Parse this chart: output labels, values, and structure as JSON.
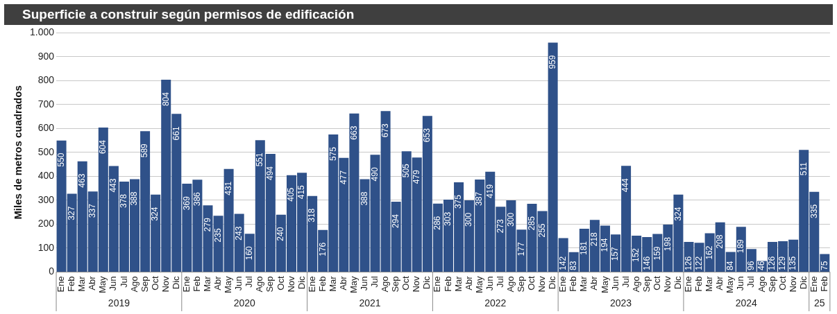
{
  "chart_data": {
    "type": "bar",
    "title": "Superficie a construir según permisos de edificación",
    "ylabel": "Miles de metros cuadrados",
    "categories": [
      "Ene",
      "Feb",
      "Mar",
      "Abr",
      "May",
      "Jun",
      "Jul",
      "Ago",
      "Sep",
      "Oct",
      "Nov",
      "Dic",
      "Ene",
      "Feb",
      "Mar",
      "Abr",
      "May",
      "Jun",
      "Jul",
      "Ago",
      "Sep",
      "Oct",
      "Nov",
      "Dic",
      "Ene",
      "Feb",
      "Mar",
      "Abr",
      "May",
      "Jun",
      "Jul",
      "Ago",
      "Sep",
      "Oct",
      "Nov",
      "Dic",
      "Ene",
      "Feb",
      "Mar",
      "Abr",
      "May",
      "Jun",
      "Jul",
      "Ago",
      "Sep",
      "Oct",
      "Nov",
      "Dic",
      "Ene",
      "Feb",
      "Mar",
      "Abr",
      "May",
      "Jun",
      "Jul",
      "Ago",
      "Sep",
      "Oct",
      "Nov",
      "Dic",
      "Ene",
      "Feb",
      "Mar",
      "Abr",
      "May",
      "Jun",
      "Jul",
      "Ago",
      "Sep",
      "Oct",
      "Nov",
      "Dic",
      "Ene",
      "Feb"
    ],
    "values": [
      550,
      327,
      463,
      337,
      604,
      443,
      378,
      388,
      589,
      324,
      804,
      661,
      369,
      386,
      279,
      235,
      431,
      243,
      160,
      551,
      494,
      240,
      405,
      415,
      318,
      176,
      575,
      477,
      663,
      388,
      490,
      673,
      294,
      505,
      479,
      653,
      286,
      303,
      375,
      300,
      387,
      419,
      273,
      300,
      177,
      285,
      255,
      959,
      142,
      83,
      181,
      218,
      194,
      157,
      444,
      152,
      146,
      159,
      198,
      324,
      126,
      122,
      162,
      208,
      84,
      189,
      96,
      46,
      126,
      129,
      135,
      511,
      335,
      75
    ],
    "color": "#2f5189",
    "ylim": [
      0,
      1000
    ],
    "yticks": [
      0,
      100,
      200,
      300,
      400,
      500,
      600,
      700,
      800,
      900,
      {
        "value": 1000,
        "label": "1.000"
      }
    ],
    "grid": "y",
    "legend": false,
    "data_labels": true,
    "annotations": [
      "2019",
      "2020",
      "2021",
      "2022",
      "2023",
      "2024",
      "25"
    ]
  }
}
